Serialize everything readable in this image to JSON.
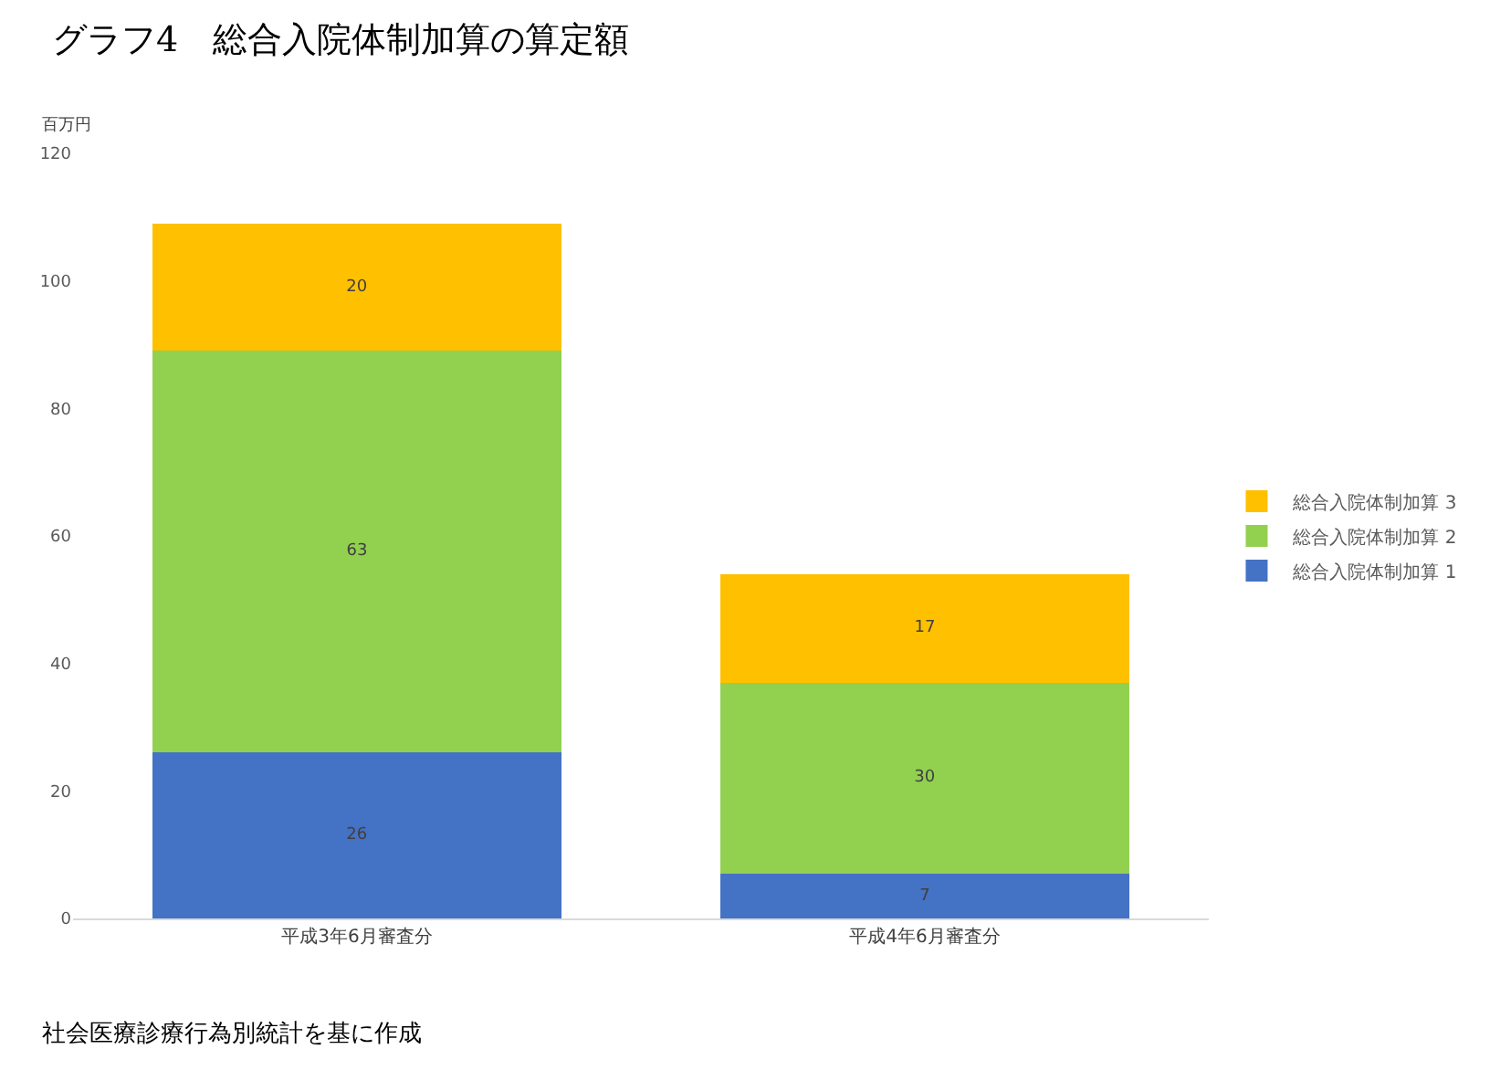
{
  "chart_data": {
    "type": "bar",
    "stacked": true,
    "title": "グラフ4　総合入院体制加算の算定額",
    "ylabel": "百万円",
    "categories": [
      "平成3年6月審査分",
      "平成4年6月審査分"
    ],
    "series": [
      {
        "name": "総合入院体制加算 1",
        "color": "#4472c4",
        "values": [
          26,
          7
        ]
      },
      {
        "name": "総合入院体制加算 2",
        "color": "#92d050",
        "values": [
          63,
          30
        ]
      },
      {
        "name": "総合入院体制加算 3",
        "color": "#ffc000",
        "values": [
          20,
          17
        ]
      }
    ],
    "ylim": [
      0,
      120
    ],
    "yticks": [
      0,
      20,
      40,
      60,
      80,
      100,
      120
    ],
    "grid": false,
    "legend": "right",
    "data_labels": true,
    "annotations": [
      "社会医療診療行為別統計を基に作成"
    ]
  }
}
